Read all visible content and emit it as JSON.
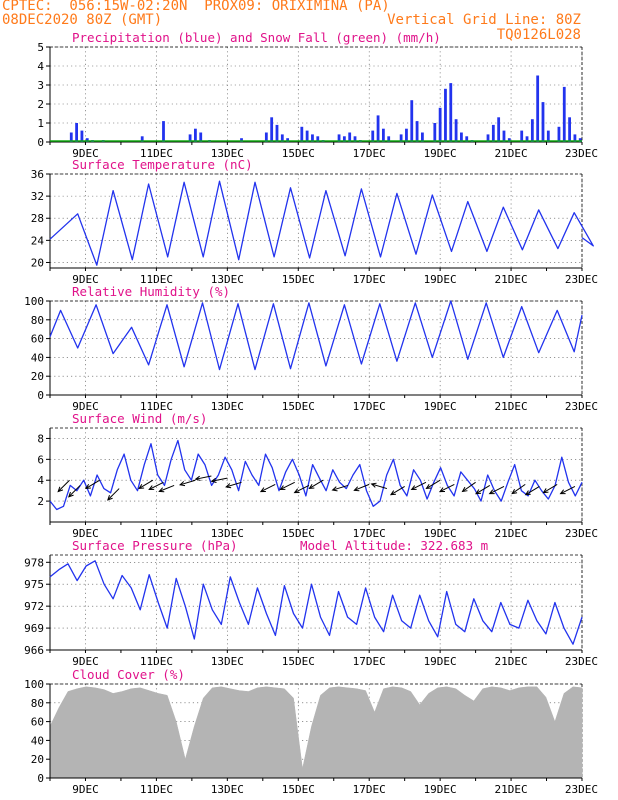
{
  "header": {
    "line1_left": "CPTEC:  056:15W-02:20N  PROX09: ORIXIMINA (PA)",
    "line2_left": "08DEC2020 80Z (GMT)",
    "line2_right": "Vertical Grid Line: 80Z",
    "line3_right": "TQ0126L028"
  },
  "colors": {
    "header": "#ff7a1a",
    "title": "#e0128a",
    "blue": "#2233ee",
    "green": "#11aa11",
    "cloud": "#b4b4b4"
  },
  "chart_data": [
    {
      "type": "bar",
      "title": "Precipitation (blue) and Snow Fall (green) (mm/h)",
      "x_ticks": [
        "9DEC",
        "11DEC",
        "13DEC",
        "15DEC",
        "17DEC",
        "19DEC",
        "21DEC",
        "23DEC"
      ],
      "ylim": [
        0,
        5
      ],
      "y_ticks": [
        0,
        1,
        2,
        3,
        4,
        5
      ],
      "grid": true,
      "series": [
        {
          "name": "Precipitation",
          "color": "#2233ee",
          "x": [
            0.6,
            0.75,
            0.9,
            1.05,
            1.2,
            1.5,
            2.6,
            3.2,
            3.95,
            4.1,
            4.25,
            4.5,
            5.4,
            6.1,
            6.25,
            6.4,
            6.55,
            6.7,
            7.1,
            7.25,
            7.4,
            7.55,
            7.7,
            8.15,
            8.3,
            8.45,
            8.6,
            8.75,
            9.1,
            9.25,
            9.4,
            9.55,
            9.9,
            10.05,
            10.2,
            10.35,
            10.5,
            10.85,
            11.0,
            11.15,
            11.3,
            11.45,
            11.6,
            11.75,
            11.9,
            12.35,
            12.5,
            12.65,
            12.8,
            12.95,
            13.3,
            13.45,
            13.6,
            13.75,
            13.9,
            14.05,
            14.35,
            14.5,
            14.65,
            14.8,
            14.95
          ],
          "values": [
            0.5,
            1.0,
            0.6,
            0.2,
            0.1,
            0.1,
            0.3,
            1.1,
            0.4,
            0.7,
            0.5,
            0.1,
            0.2,
            0.5,
            1.3,
            0.9,
            0.4,
            0.2,
            0.8,
            0.6,
            0.4,
            0.3,
            0.1,
            0.4,
            0.3,
            0.5,
            0.3,
            0.1,
            0.6,
            1.4,
            0.7,
            0.3,
            0.4,
            0.7,
            2.2,
            1.1,
            0.5,
            1.0,
            1.8,
            2.8,
            3.1,
            1.2,
            0.5,
            0.3,
            0.1,
            0.4,
            0.9,
            1.3,
            0.6,
            0.2,
            0.6,
            0.3,
            1.2,
            3.5,
            2.1,
            0.6,
            0.8,
            2.9,
            1.3,
            0.4,
            0.2
          ]
        },
        {
          "name": "Snow Fall",
          "color": "#11aa11",
          "values": [
            0
          ]
        }
      ]
    },
    {
      "type": "line",
      "title": "Surface Temperature (nC)",
      "x_ticks": [
        "9DEC",
        "11DEC",
        "13DEC",
        "15DEC",
        "17DEC",
        "19DEC",
        "21DEC",
        "23DEC"
      ],
      "ylim": [
        19,
        36
      ],
      "y_ticks": [
        20,
        24,
        28,
        32,
        36
      ],
      "grid": true,
      "peaks": [
        28.8,
        33.0,
        34.2,
        34.5,
        34.7,
        34.5,
        33.5,
        33.0,
        33.3,
        32.5,
        32.2,
        31.0,
        30.0,
        29.5,
        29.0
      ],
      "troughs": [
        19.5,
        20.5,
        21.0,
        21.0,
        20.5,
        21.0,
        20.8,
        21.2,
        21.0,
        21.5,
        22.0,
        22.0,
        22.3,
        22.5,
        23.0
      ],
      "end_value": 24.5
    },
    {
      "type": "line",
      "title": "Relative Humidity (%)",
      "x_ticks": [
        "9DEC",
        "11DEC",
        "13DEC",
        "15DEC",
        "17DEC",
        "19DEC",
        "21DEC",
        "23DEC"
      ],
      "ylim": [
        0,
        100
      ],
      "y_ticks": [
        0,
        20,
        40,
        60,
        80,
        100
      ],
      "grid": true,
      "peaks": [
        90,
        96,
        72,
        96,
        98,
        97,
        97,
        98,
        96,
        97,
        98,
        100,
        98,
        94,
        90
      ],
      "troughs": [
        50,
        44,
        32,
        30,
        27,
        27,
        28,
        31,
        33,
        36,
        40,
        38,
        40,
        45,
        46
      ]
    },
    {
      "type": "line",
      "title": "Surface Wind (m/s)",
      "x_ticks": [
        "9DEC",
        "11DEC",
        "13DEC",
        "15DEC",
        "17DEC",
        "19DEC",
        "21DEC",
        "23DEC"
      ],
      "ylim": [
        0,
        9
      ],
      "y_ticks": [
        2,
        4,
        6,
        8
      ],
      "grid": true,
      "speed": [
        2.0,
        1.2,
        1.5,
        3.5,
        3.0,
        4.0,
        2.5,
        4.5,
        3.2,
        2.8,
        5.0,
        6.5,
        4.0,
        3.0,
        5.5,
        7.5,
        4.5,
        3.5,
        6.0,
        7.8,
        5.0,
        4.0,
        6.5,
        5.5,
        3.5,
        4.5,
        6.2,
        5.0,
        3.0,
        5.8,
        4.5,
        3.5,
        6.5,
        5.2,
        3.0,
        4.8,
        6.0,
        4.5,
        2.5,
        5.5,
        4.2,
        3.0,
        5.0,
        3.8,
        3.2,
        4.5,
        5.5,
        3.0,
        1.5,
        2.0,
        4.5,
        6.0,
        3.5,
        2.5,
        5.0,
        4.0,
        2.2,
        3.8,
        5.2,
        3.5,
        2.5,
        4.8,
        4.0,
        3.2,
        2.0,
        4.5,
        3.0,
        2.0,
        3.8,
        5.5,
        3.0,
        2.5,
        4.0,
        3.0,
        2.2,
        3.5,
        6.2,
        3.8,
        2.5,
        3.8
      ],
      "arrows": [
        {
          "x": 0.55,
          "speed": 4.0,
          "dir": [
            -1,
            -1
          ]
        },
        {
          "x": 0.85,
          "speed": 3.5,
          "dir": [
            -1,
            -1
          ]
        },
        {
          "x": 1.4,
          "speed": 4.0,
          "dir": [
            -1,
            -0.6
          ]
        },
        {
          "x": 1.95,
          "speed": 3.2,
          "dir": [
            -1,
            -1
          ]
        },
        {
          "x": 2.9,
          "speed": 4.0,
          "dir": [
            -1,
            -0.6
          ]
        },
        {
          "x": 3.2,
          "speed": 3.8,
          "dir": [
            -1,
            -0.5
          ]
        },
        {
          "x": 3.5,
          "speed": 3.5,
          "dir": [
            -1,
            -0.4
          ]
        },
        {
          "x": 4.1,
          "speed": 4.0,
          "dir": [
            -1,
            -0.3
          ]
        },
        {
          "x": 4.55,
          "speed": 4.4,
          "dir": [
            -1,
            -0.2
          ]
        },
        {
          "x": 5.0,
          "speed": 4.2,
          "dir": [
            -1,
            -0.2
          ]
        },
        {
          "x": 5.4,
          "speed": 3.8,
          "dir": [
            -1,
            -0.3
          ]
        },
        {
          "x": 6.35,
          "speed": 3.6,
          "dir": [
            -1,
            -0.5
          ]
        },
        {
          "x": 6.9,
          "speed": 3.8,
          "dir": [
            -1,
            -0.5
          ]
        },
        {
          "x": 7.3,
          "speed": 3.5,
          "dir": [
            -1,
            -0.5
          ]
        },
        {
          "x": 7.7,
          "speed": 4.0,
          "dir": [
            -1,
            -0.6
          ]
        },
        {
          "x": 8.4,
          "speed": 3.5,
          "dir": [
            -1,
            -0.3
          ]
        },
        {
          "x": 9.0,
          "speed": 3.6,
          "dir": [
            -1,
            -0.4
          ]
        },
        {
          "x": 9.5,
          "speed": 3.2,
          "dir": [
            -1,
            0.3
          ]
        },
        {
          "x": 10.0,
          "speed": 3.4,
          "dir": [
            -1,
            -0.6
          ]
        },
        {
          "x": 10.6,
          "speed": 3.8,
          "dir": [
            -1,
            -0.5
          ]
        },
        {
          "x": 11.0,
          "speed": 4.0,
          "dir": [
            -1,
            -0.6
          ]
        },
        {
          "x": 11.4,
          "speed": 3.6,
          "dir": [
            -1,
            -0.5
          ]
        },
        {
          "x": 12.0,
          "speed": 3.8,
          "dir": [
            -1,
            -0.7
          ]
        },
        {
          "x": 12.4,
          "speed": 3.5,
          "dir": [
            -1,
            -0.6
          ]
        },
        {
          "x": 12.8,
          "speed": 3.4,
          "dir": [
            -1,
            -0.5
          ]
        },
        {
          "x": 13.4,
          "speed": 3.6,
          "dir": [
            -1,
            -0.7
          ]
        },
        {
          "x": 13.8,
          "speed": 3.4,
          "dir": [
            -1,
            -0.6
          ]
        },
        {
          "x": 14.3,
          "speed": 3.6,
          "dir": [
            -1,
            -0.6
          ]
        },
        {
          "x": 14.8,
          "speed": 3.4,
          "dir": [
            -1,
            -0.5
          ]
        }
      ]
    },
    {
      "type": "line",
      "title": "Surface Pressure (hPa)",
      "annotation": "Model Altitude: 322.683 m",
      "x_ticks": [
        "9DEC",
        "11DEC",
        "13DEC",
        "15DEC",
        "17DEC",
        "19DEC",
        "21DEC",
        "23DEC"
      ],
      "ylim": [
        966,
        979
      ],
      "y_ticks": [
        966,
        969,
        972,
        975,
        978
      ],
      "grid": true,
      "values": [
        976.0,
        977.0,
        977.8,
        975.5,
        977.5,
        978.2,
        975.0,
        973.0,
        976.2,
        974.5,
        971.5,
        976.3,
        972.5,
        969.0,
        975.8,
        972.0,
        967.5,
        975.0,
        971.5,
        969.5,
        976.0,
        972.5,
        969.5,
        974.5,
        971.0,
        968.0,
        974.8,
        971.0,
        969.0,
        975.0,
        970.5,
        968.0,
        974.0,
        970.5,
        969.5,
        974.5,
        970.5,
        968.5,
        973.5,
        970.0,
        969.0,
        973.5,
        970.0,
        967.8,
        974.0,
        969.5,
        968.5,
        973.0,
        970.0,
        968.5,
        972.5,
        969.5,
        969.0,
        972.8,
        970.0,
        968.2,
        972.5,
        969.0,
        966.8,
        970.5
      ]
    },
    {
      "type": "area",
      "title": "Cloud Cover (%)",
      "x_ticks": [
        "9DEC",
        "11DEC",
        "13DEC",
        "15DEC",
        "17DEC",
        "19DEC",
        "21DEC",
        "23DEC"
      ],
      "ylim": [
        0,
        100
      ],
      "y_ticks": [
        0,
        20,
        40,
        60,
        80,
        100
      ],
      "grid": true,
      "values": [
        55,
        75,
        92,
        95,
        97,
        96,
        94,
        90,
        92,
        95,
        96,
        93,
        90,
        88,
        60,
        20,
        55,
        85,
        96,
        97,
        95,
        93,
        92,
        96,
        97,
        96,
        95,
        85,
        10,
        55,
        88,
        96,
        97,
        96,
        95,
        93,
        70,
        95,
        97,
        96,
        92,
        78,
        90,
        96,
        97,
        95,
        88,
        82,
        95,
        97,
        96,
        93,
        96,
        97,
        97,
        86,
        60,
        90,
        97,
        96
      ]
    }
  ]
}
